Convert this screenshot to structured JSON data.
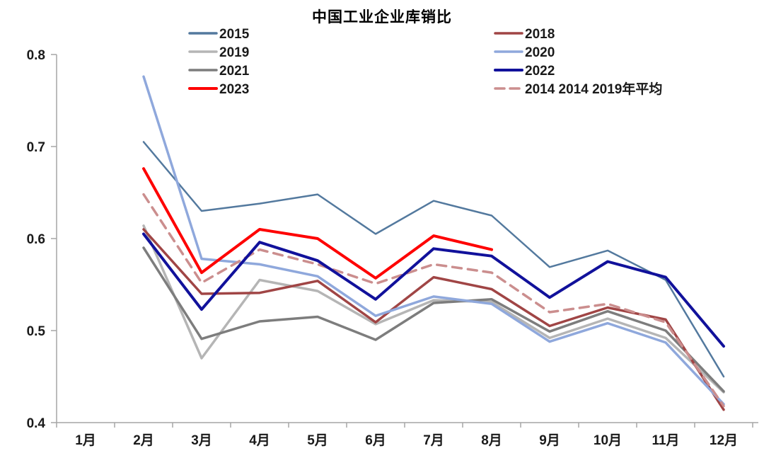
{
  "chart_data": {
    "type": "line",
    "title": "中国工业企业库销比",
    "xlabel": "",
    "ylabel": "",
    "categories": [
      "1月",
      "2月",
      "3月",
      "4月",
      "5月",
      "6月",
      "7月",
      "8月",
      "9月",
      "10月",
      "11月",
      "12月"
    ],
    "ylim": [
      0.4,
      0.8
    ],
    "yticks": [
      0.4,
      0.5,
      0.6,
      0.7,
      0.8
    ],
    "grid": false,
    "axis_color": "#a6a6a6",
    "text_color": "#1a1a1a",
    "legend_position": "top-two-columns",
    "legend_left": [
      "2015",
      "2019",
      "2021",
      "2023"
    ],
    "legend_right": [
      "2018",
      "2020",
      "2022",
      "2014 2014 2019年平均"
    ],
    "series": [
      {
        "id": "2015",
        "name": "2015",
        "color": "#53799e",
        "width": 2.5,
        "dash": "",
        "values": [
          null,
          0.705,
          0.63,
          0.638,
          0.648,
          0.605,
          0.641,
          0.625,
          0.569,
          0.587,
          0.555,
          0.45
        ]
      },
      {
        "id": "2019",
        "name": "2019",
        "color": "#b5b5b5",
        "width": 3.5,
        "dash": "",
        "values": [
          null,
          0.614,
          0.47,
          0.555,
          0.543,
          0.507,
          0.533,
          0.531,
          0.492,
          0.513,
          0.492,
          0.433
        ]
      },
      {
        "id": "2021",
        "name": "2021",
        "color": "#7d7d7d",
        "width": 3.5,
        "dash": "",
        "values": [
          null,
          0.59,
          0.491,
          0.51,
          0.515,
          0.49,
          0.53,
          0.534,
          0.499,
          0.521,
          0.5,
          0.434
        ]
      },
      {
        "id": "2018",
        "name": "2018",
        "color": "#a04545",
        "width": 3.5,
        "dash": "",
        "values": [
          null,
          0.61,
          0.54,
          0.541,
          0.554,
          0.509,
          0.558,
          0.545,
          0.505,
          0.525,
          0.512,
          0.414
        ]
      },
      {
        "id": "2020",
        "name": "2020",
        "color": "#8fa8dc",
        "width": 3.5,
        "dash": "",
        "values": [
          null,
          0.776,
          0.578,
          0.572,
          0.559,
          0.516,
          0.537,
          0.529,
          0.488,
          0.508,
          0.487,
          0.42
        ]
      },
      {
        "id": "avg-2014-2019",
        "name": "2014 2014 2019年平均",
        "color": "#cb8e8e",
        "width": 3.5,
        "dash": "13 9",
        "values": [
          null,
          0.648,
          0.552,
          0.588,
          0.572,
          0.551,
          0.572,
          0.563,
          0.52,
          0.529,
          0.509,
          0.418
        ]
      },
      {
        "id": "2022",
        "name": "2022",
        "color": "#11119b",
        "width": 4,
        "dash": "",
        "values": [
          null,
          0.605,
          0.523,
          0.596,
          0.576,
          0.534,
          0.589,
          0.581,
          0.536,
          0.575,
          0.558,
          0.483
        ]
      },
      {
        "id": "2023",
        "name": "2023",
        "color": "#fe0000",
        "width": 4,
        "dash": "",
        "values": [
          null,
          0.676,
          0.563,
          0.61,
          0.6,
          0.557,
          0.603,
          0.588,
          null,
          null,
          null,
          null
        ]
      }
    ]
  }
}
